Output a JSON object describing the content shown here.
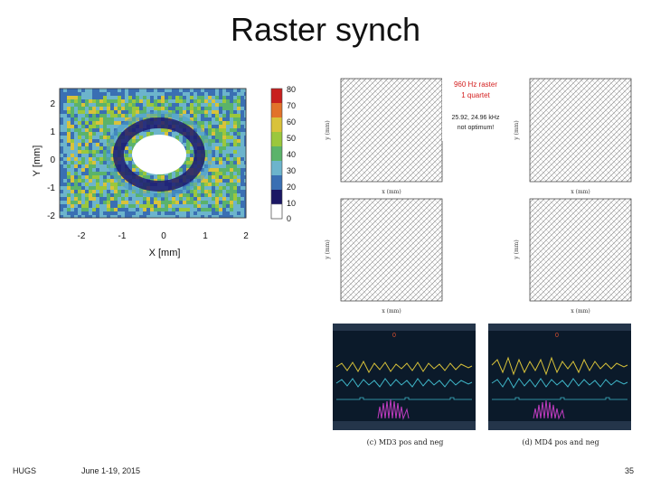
{
  "slide": {
    "title": "Raster synch",
    "footer_left": "HUGS",
    "footer_date": "June 1-19, 2015",
    "page_number": "35"
  },
  "heatmap": {
    "xlabel": "X [mm]",
    "ylabel": "Y [mm]",
    "x_ticks": [
      "-2",
      "-1",
      "0",
      "1",
      "2"
    ],
    "y_ticks": [
      "2",
      "1",
      "0",
      "-1",
      "-2"
    ],
    "colorbar_ticks": [
      "80",
      "70",
      "60",
      "50",
      "40",
      "30",
      "20",
      "10",
      "0"
    ]
  },
  "raster_panels": {
    "annotation_line1": "960 Hz raster",
    "annotation_line2": "1 quartet",
    "annotation_line3": "25.92, 24.96 kHz",
    "annotation_line4": "not optimum!",
    "axis_label_x": "x (mm)",
    "axis_label_y": "y (mm)"
  },
  "scope": {
    "caption_left": "(c) MD3 pos and neg",
    "caption_right": "(d) MD4 pos and neg",
    "marker": "0"
  },
  "colors": {
    "scope_bg": "#0b1a2a",
    "trace_yellow": "#d8c23a",
    "trace_cyan": "#3fb6c8",
    "trace_magenta": "#c03cc0",
    "annotation_red": "#d42020"
  }
}
